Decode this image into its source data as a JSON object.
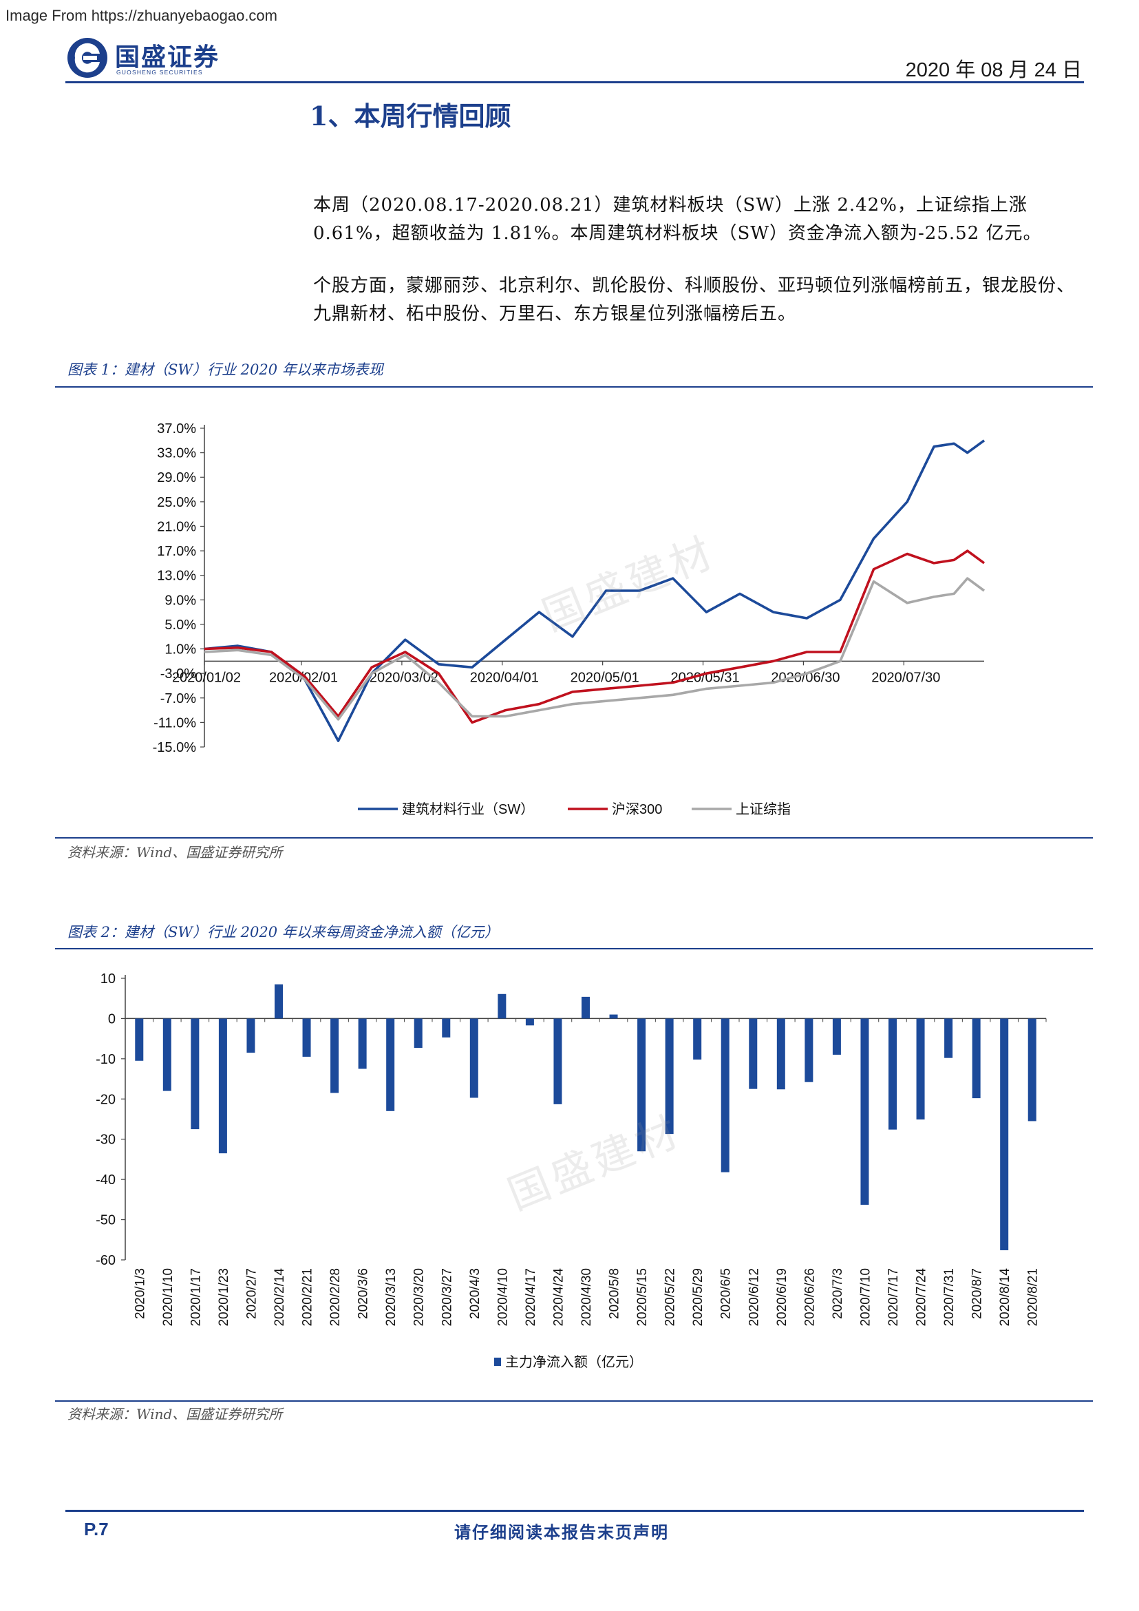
{
  "source_banner": "Image From https://zhuanyebaogao.com",
  "header": {
    "logo_text": "国盛证券",
    "logo_sub": "GUOSHENG SECURITIES",
    "date": "2020 年 08 月 24 日"
  },
  "section_title": "1、本周行情回顾",
  "paragraphs": [
    "本周（2020.08.17-2020.08.21）建筑材料板块（SW）上涨 2.42%，上证综指上涨 0.61%，超额收益为 1.81%。本周建筑材料板块（SW）资金净流入额为-25.52 亿元。",
    "个股方面，蒙娜丽莎、北京利尔、凯伦股份、科顺股份、亚玛顿位列涨幅榜前五，银龙股份、九鼎新材、柘中股份、万里石、东方银星位列涨幅榜后五。"
  ],
  "figure1": {
    "caption": "图表 1：建材（SW）行业 2020 年以来市场表现",
    "source": "资料来源：Wind、国盛证券研究所",
    "watermark": "国盛建材"
  },
  "figure2": {
    "caption": "图表 2：建材（SW）行业 2020 年以来每周资金净流入额（亿元）",
    "source": "资料来源：Wind、国盛证券研究所",
    "watermark": "国盛建材"
  },
  "chart_data": [
    {
      "type": "line",
      "y_ticks": [
        "37.0%",
        "33.0%",
        "29.0%",
        "25.0%",
        "21.0%",
        "17.0%",
        "13.0%",
        "9.0%",
        "5.0%",
        "1.0%",
        "-3.0%",
        "-7.0%",
        "-11.0%",
        "-15.0%"
      ],
      "ylim": [
        -15,
        37
      ],
      "x_ticks": [
        "2020/01/02",
        "2020/02/01",
        "2020/03/02",
        "2020/04/01",
        "2020/05/01",
        "2020/05/31",
        "2020/06/30",
        "2020/07/30"
      ],
      "x_index": [
        0,
        10,
        20,
        30,
        40,
        50,
        60,
        70,
        80,
        90,
        100,
        110,
        120,
        130,
        140,
        150,
        160,
        170,
        180,
        190,
        200,
        210,
        218,
        224,
        228,
        233
      ],
      "series": [
        {
          "name": "建筑材料行业（SW）",
          "color": "#1c4a9a",
          "values": [
            1.0,
            1.5,
            0.5,
            -4.0,
            -14.0,
            -3.0,
            2.5,
            -1.5,
            -2.0,
            2.5,
            7.0,
            3.0,
            10.5,
            10.5,
            12.5,
            7.0,
            10.0,
            7.0,
            6.0,
            9.0,
            19.0,
            25.0,
            34.0,
            34.5,
            33.0,
            35.0
          ]
        },
        {
          "name": "沪深300",
          "color": "#c0111e",
          "values": [
            1.0,
            1.2,
            0.5,
            -3.5,
            -10.0,
            -2.0,
            0.5,
            -3.0,
            -11.0,
            -9.0,
            -8.0,
            -6.0,
            -5.5,
            -5.0,
            -4.5,
            -3.0,
            -2.0,
            -1.0,
            0.5,
            0.5,
            14.0,
            16.5,
            15.0,
            15.5,
            17.0,
            15.0
          ]
        },
        {
          "name": "上证综指",
          "color": "#a8a8a8",
          "values": [
            0.5,
            0.8,
            0.0,
            -4.0,
            -10.5,
            -3.0,
            0.0,
            -4.5,
            -10.0,
            -10.0,
            -9.0,
            -8.0,
            -7.5,
            -7.0,
            -6.5,
            -5.5,
            -5.0,
            -4.5,
            -3.0,
            -1.0,
            12.0,
            8.5,
            9.5,
            10.0,
            12.5,
            10.5
          ]
        }
      ]
    },
    {
      "type": "bar",
      "ylim": [
        -60,
        10
      ],
      "y_ticks": [
        10,
        0,
        -10,
        -20,
        -30,
        -40,
        -50,
        -60
      ],
      "categories": [
        "2020/1/3",
        "2020/1/10",
        "2020/1/17",
        "2020/1/23",
        "2020/2/7",
        "2020/2/14",
        "2020/2/21",
        "2020/2/28",
        "2020/3/6",
        "2020/3/13",
        "2020/3/20",
        "2020/3/27",
        "2020/4/3",
        "2020/4/10",
        "2020/4/17",
        "2020/4/24",
        "2020/4/30",
        "2020/5/8",
        "2020/5/15",
        "2020/5/22",
        "2020/5/29",
        "2020/6/5",
        "2020/6/12",
        "2020/6/19",
        "2020/6/26",
        "2020/7/3",
        "2020/7/10",
        "2020/7/17",
        "2020/7/24",
        "2020/7/31",
        "2020/8/7",
        "2020/8/14",
        "2020/8/21"
      ],
      "series": [
        {
          "name": "主力净流入额（亿元）",
          "color": "#1c4a9a",
          "values": [
            -10.5,
            -18,
            -27.5,
            -33.5,
            -8.5,
            8.5,
            -9.5,
            -18.5,
            -12.5,
            -23,
            -7.3,
            -4.7,
            -19.7,
            6.1,
            -1.7,
            -21.3,
            5.4,
            1.0,
            -33.0,
            -28.7,
            -10.2,
            -38.2,
            -17.5,
            -17.6,
            -15.8,
            -9.0,
            -46.3,
            -27.6,
            -25.1,
            -9.8,
            -19.8,
            -57.6,
            -25.5
          ]
        }
      ]
    }
  ]
}
